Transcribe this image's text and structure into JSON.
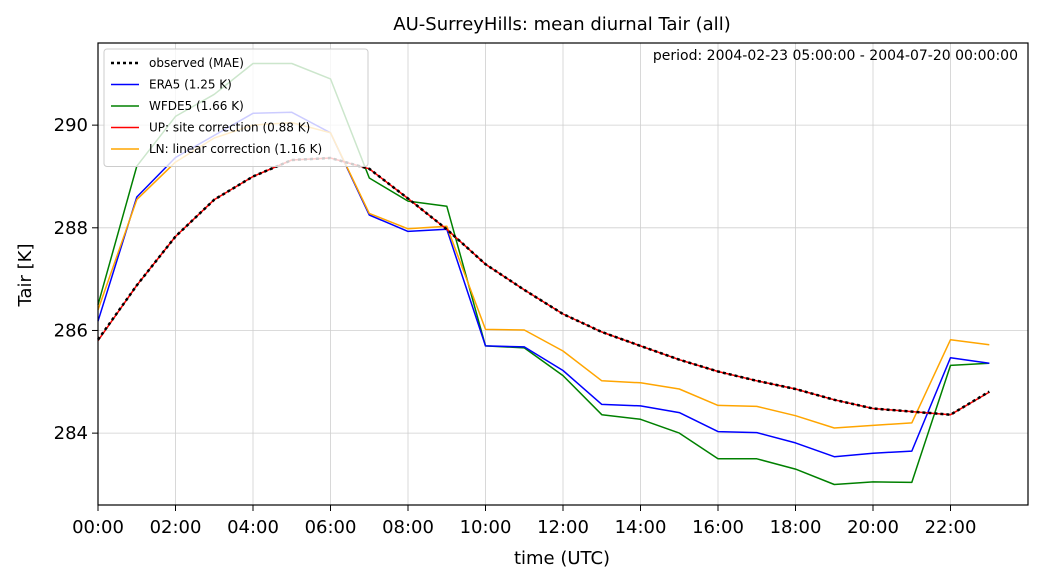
{
  "chart_data": {
    "type": "line",
    "title": "AU-SurreyHills: mean diurnal Tair (all)",
    "annotation": "period: 2004-02-23 05:00:00 - 2004-07-20 00:00:00",
    "xlabel": "time (UTC)",
    "ylabel": "Tair [K]",
    "x": [
      0,
      1,
      2,
      3,
      4,
      5,
      6,
      7,
      8,
      9,
      10,
      11,
      12,
      13,
      14,
      15,
      16,
      17,
      18,
      19,
      20,
      21,
      22,
      23
    ],
    "xlim": [
      0,
      24
    ],
    "ylim": [
      282.6,
      291.6
    ],
    "x_ticks": [
      {
        "value": 0,
        "label": "00:00"
      },
      {
        "value": 2,
        "label": "02:00"
      },
      {
        "value": 4,
        "label": "04:00"
      },
      {
        "value": 6,
        "label": "06:00"
      },
      {
        "value": 8,
        "label": "08:00"
      },
      {
        "value": 10,
        "label": "10:00"
      },
      {
        "value": 12,
        "label": "12:00"
      },
      {
        "value": 14,
        "label": "14:00"
      },
      {
        "value": 16,
        "label": "16:00"
      },
      {
        "value": 18,
        "label": "18:00"
      },
      {
        "value": 20,
        "label": "20:00"
      },
      {
        "value": 22,
        "label": "22:00"
      }
    ],
    "y_ticks": [
      {
        "value": 284,
        "label": "284"
      },
      {
        "value": 286,
        "label": "286"
      },
      {
        "value": 288,
        "label": "288"
      },
      {
        "value": 290,
        "label": "290"
      }
    ],
    "grid": true,
    "legend_position": "top-left",
    "series": [
      {
        "name": "observed (MAE)",
        "color": "#000000",
        "style": "dotted",
        "values": [
          285.82,
          286.88,
          287.83,
          288.55,
          289.0,
          289.32,
          289.36,
          289.15,
          288.57,
          287.97,
          287.29,
          286.79,
          286.32,
          285.97,
          285.7,
          285.43,
          285.2,
          285.02,
          284.86,
          284.65,
          284.48,
          284.42,
          284.36,
          284.81
        ]
      },
      {
        "name": "ERA5 (1.25 K)",
        "color": "#0000ff",
        "style": "solid",
        "values": [
          286.18,
          288.6,
          289.37,
          289.8,
          290.23,
          290.25,
          289.85,
          288.25,
          287.93,
          287.97,
          285.7,
          285.68,
          285.22,
          284.56,
          284.53,
          284.4,
          284.03,
          284.01,
          283.81,
          283.54,
          283.61,
          283.65,
          285.47,
          285.36
        ]
      },
      {
        "name": "WFDE5 (1.66 K)",
        "color": "#008000",
        "style": "solid",
        "values": [
          286.5,
          289.2,
          290.17,
          290.6,
          291.2,
          291.2,
          290.9,
          288.97,
          288.52,
          288.42,
          285.7,
          285.66,
          285.12,
          284.36,
          284.27,
          284.0,
          283.5,
          283.5,
          283.3,
          283.0,
          283.05,
          283.04,
          285.32,
          285.36
        ]
      },
      {
        "name": "UP: site correction (0.88 K)",
        "color": "#ff0000",
        "style": "solid",
        "values": [
          285.8,
          286.88,
          287.83,
          288.55,
          289.0,
          289.32,
          289.36,
          289.15,
          288.57,
          287.97,
          287.29,
          286.79,
          286.32,
          285.97,
          285.7,
          285.43,
          285.2,
          285.02,
          284.86,
          284.65,
          284.48,
          284.42,
          284.36,
          284.8
        ]
      },
      {
        "name": "LN: linear correction (1.16 K)",
        "color": "#ffa500",
        "style": "solid",
        "values": [
          286.4,
          288.55,
          289.28,
          289.75,
          290.0,
          290.05,
          289.85,
          288.28,
          287.98,
          288.03,
          286.02,
          286.01,
          285.6,
          285.02,
          284.98,
          284.86,
          284.54,
          284.52,
          284.34,
          284.1,
          284.15,
          284.2,
          285.82,
          285.72
        ]
      }
    ]
  }
}
